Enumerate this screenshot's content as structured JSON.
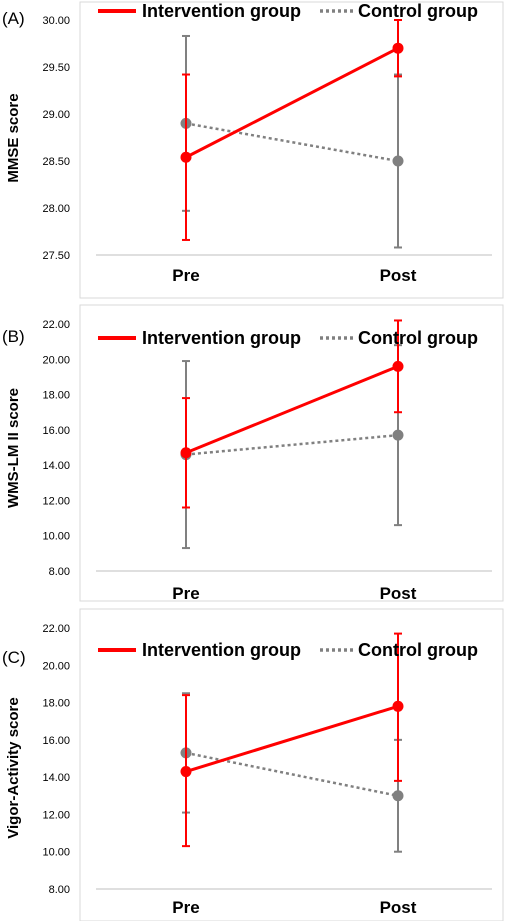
{
  "chart_data": [
    {
      "type": "line",
      "panel_label": "(A)",
      "ylabel": "MMSE score",
      "categories": [
        "Pre",
        "Post"
      ],
      "ylim": [
        27.5,
        30.0
      ],
      "yticks": [
        "27.50",
        "28.00",
        "28.50",
        "29.00",
        "29.50",
        "30.00"
      ],
      "legend_position": "top",
      "series": [
        {
          "name": "Intervention group",
          "color": "#ff0000",
          "style": "solid",
          "values": [
            28.54,
            29.7
          ],
          "error_low": [
            27.66,
            29.4
          ],
          "error_high": [
            29.42,
            30.0
          ]
        },
        {
          "name": "Control group",
          "color": "#808080",
          "style": "dotted",
          "values": [
            28.9,
            28.5
          ],
          "error_low": [
            27.97,
            27.58
          ],
          "error_high": [
            29.83,
            29.42
          ]
        }
      ]
    },
    {
      "type": "line",
      "panel_label": "(B)",
      "ylabel": "WMS-LM II score",
      "categories": [
        "Pre",
        "Post"
      ],
      "ylim": [
        8.0,
        22.0
      ],
      "yticks": [
        "8.00",
        "10.00",
        "12.00",
        "14.00",
        "16.00",
        "18.00",
        "20.00",
        "22.00"
      ],
      "legend_position": "top",
      "series": [
        {
          "name": "Intervention group",
          "color": "#ff0000",
          "style": "solid",
          "values": [
            14.7,
            19.6
          ],
          "error_low": [
            11.6,
            17.0
          ],
          "error_high": [
            17.8,
            22.2
          ]
        },
        {
          "name": "Control group",
          "color": "#808080",
          "style": "dotted",
          "values": [
            14.6,
            15.7
          ],
          "error_low": [
            9.3,
            10.6
          ],
          "error_high": [
            19.9,
            20.8
          ]
        }
      ]
    },
    {
      "type": "line",
      "panel_label": "(C)",
      "ylabel": "Vigor-Activity score",
      "categories": [
        "Pre",
        "Post"
      ],
      "ylim": [
        8.0,
        22.0
      ],
      "yticks": [
        "8.00",
        "10.00",
        "12.00",
        "14.00",
        "16.00",
        "18.00",
        "20.00",
        "22.00"
      ],
      "legend_position": "top",
      "series": [
        {
          "name": "Intervention group",
          "color": "#ff0000",
          "style": "solid",
          "values": [
            14.3,
            17.8
          ],
          "error_low": [
            10.3,
            13.8
          ],
          "error_high": [
            18.4,
            21.7
          ]
        },
        {
          "name": "Control group",
          "color": "#808080",
          "style": "dotted",
          "values": [
            15.3,
            13.0
          ],
          "error_low": [
            12.1,
            10.0
          ],
          "error_high": [
            18.5,
            16.0
          ]
        }
      ]
    }
  ]
}
